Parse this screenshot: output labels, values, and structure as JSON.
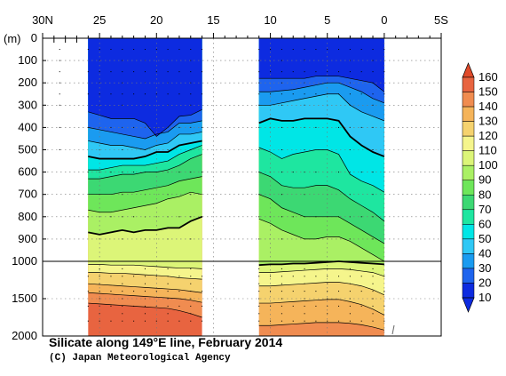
{
  "chart_data": {
    "type": "heatmap",
    "title": "Silicate along 149°E line, February 2014",
    "credit": "(C) Japan Meteorological Agency",
    "depth_unit": "(m)",
    "x_ticks": [
      "30N",
      "25",
      "20",
      "15",
      "10",
      "5",
      "0",
      "5S"
    ],
    "x_tick_values": [
      30,
      25,
      20,
      15,
      10,
      5,
      0,
      -5
    ],
    "xlim": [
      30,
      -5
    ],
    "y_ticks_upper": [
      "0",
      "100",
      "200",
      "300",
      "400",
      "500",
      "600",
      "700",
      "800",
      "900",
      "1000"
    ],
    "y_ticks_lower": [
      "1500",
      "2000"
    ],
    "ylim": [
      0,
      2000
    ],
    "axis_break_depth": 1000,
    "colorbar": {
      "levels": [
        10,
        20,
        30,
        40,
        50,
        60,
        70,
        80,
        90,
        100,
        110,
        120,
        130,
        140,
        150,
        160
      ],
      "labels": [
        "160",
        "150",
        "140",
        "130",
        "120",
        "110",
        "100",
        "90",
        "80",
        "70",
        "60",
        "50",
        "40",
        "30",
        "20",
        "10"
      ],
      "colors": [
        "#0d2be0",
        "#1e64ee",
        "#1a9bf0",
        "#2fc8f5",
        "#00e6e6",
        "#1ee6a0",
        "#3cd873",
        "#6ee65a",
        "#aaf064",
        "#dcf578",
        "#f5f58c",
        "#f5d26e",
        "#f5b45a",
        "#f08c50",
        "#e86440",
        "#e04a2a"
      ]
    },
    "sections": [
      {
        "lat_range": [
          26,
          16
        ],
        "layers": [
          {
            "depths": [
              330,
              345,
              360,
              360,
              360,
              380,
              440,
              400,
              350,
              345,
              320
            ],
            "value_above": 10
          },
          {
            "depths": [
              400,
              410,
              420,
              430,
              440,
              450,
              430,
              420,
              380,
              380,
              370
            ],
            "value_above": 20
          },
          {
            "depths": [
              460,
              470,
              480,
              480,
              490,
              500,
              480,
              470,
              430,
              430,
              420
            ],
            "value_above": 30
          },
          {
            "depths": [
              530,
              540,
              540,
              540,
              540,
              530,
              510,
              510,
              480,
              470,
              460
            ],
            "value_above": 40
          },
          {
            "depths": [
              590,
              590,
              580,
              570,
              570,
              570,
              560,
              550,
              520,
              500,
              480
            ],
            "value_above": 50
          },
          {
            "depths": [
              630,
              630,
              620,
              610,
              610,
              600,
              600,
              590,
              570,
              540,
              520
            ],
            "value_above": 60
          },
          {
            "depths": [
              700,
              700,
              700,
              690,
              690,
              680,
              670,
              660,
              640,
              630,
              620
            ],
            "value_above": 70
          },
          {
            "depths": [
              770,
              780,
              780,
              770,
              760,
              750,
              740,
              720,
              710,
              690,
              700
            ],
            "value_above": 80
          },
          {
            "depths": [
              870,
              880,
              870,
              860,
              870,
              860,
              860,
              850,
              850,
              820,
              800
            ],
            "value_above": 90
          },
          {
            "depths": [
              1040,
              1040,
              1050,
              1050,
              1050,
              1060,
              1070,
              1080,
              1090,
              1090,
              1100
            ],
            "value_above": 100
          },
          {
            "depths": [
              1150,
              1150,
              1160,
              1160,
              1170,
              1180,
              1190,
              1200,
              1220,
              1230,
              1240
            ],
            "value_above": 110
          },
          {
            "depths": [
              1300,
              1310,
              1320,
              1330,
              1340,
              1350,
              1360,
              1370,
              1380,
              1400,
              1420
            ],
            "value_above": 120
          },
          {
            "depths": [
              1420,
              1430,
              1440,
              1450,
              1460,
              1470,
              1480,
              1490,
              1500,
              1520,
              1550
            ],
            "value_above": 130
          },
          {
            "depths": [
              1560,
              1570,
              1580,
              1590,
              1600,
              1610,
              1620,
              1630,
              1660,
              1700,
              1750
            ],
            "value_above": 140
          }
        ],
        "value_bottom": 150
      },
      {
        "lat_range": [
          11,
          0
        ],
        "layers": [
          {
            "depths": [
              180,
              180,
              180,
              180,
              180,
              170,
              170,
              170,
              180,
              190,
              200,
              240
            ],
            "value_above": 10
          },
          {
            "depths": [
              240,
              240,
              235,
              230,
              220,
              210,
              200,
              200,
              220,
              240,
              270,
              290
            ],
            "value_above": 20
          },
          {
            "depths": [
              300,
              300,
              290,
              280,
              270,
              260,
              250,
              250,
              300,
              330,
              350,
              370
            ],
            "value_above": 30
          },
          {
            "depths": [
              380,
              360,
              370,
              370,
              360,
              360,
              360,
              370,
              440,
              480,
              510,
              530
            ],
            "value_above": 40
          },
          {
            "depths": [
              490,
              510,
              540,
              520,
              510,
              500,
              500,
              520,
              610,
              640,
              660,
              690
            ],
            "value_above": 50
          },
          {
            "depths": [
              600,
              620,
              660,
              670,
              670,
              660,
              660,
              680,
              720,
              750,
              780,
              820
            ],
            "value_above": 60
          },
          {
            "depths": [
              700,
              720,
              760,
              780,
              800,
              800,
              800,
              800,
              830,
              860,
              890,
              920
            ],
            "value_above": 70
          },
          {
            "depths": [
              810,
              830,
              860,
              880,
              900,
              900,
              890,
              890,
              910,
              940,
              970,
              1000
            ],
            "value_above": 80
          },
          {
            "depths": [
              1050,
              1040,
              1040,
              1030,
              1030,
              1020,
              1010,
              1000,
              1010,
              1020,
              1030,
              1040
            ],
            "value_above": 90
          },
          {
            "depths": [
              1150,
              1150,
              1140,
              1130,
              1120,
              1110,
              1100,
              1100,
              1110,
              1130,
              1150,
              1200
            ],
            "value_above": 100
          },
          {
            "depths": [
              1330,
              1330,
              1320,
              1310,
              1300,
              1290,
              1280,
              1280,
              1300,
              1330,
              1380,
              1450
            ],
            "value_above": 110
          },
          {
            "depths": [
              1560,
              1560,
              1550,
              1540,
              1530,
              1520,
              1510,
              1510,
              1540,
              1580,
              1640,
              1720
            ],
            "value_above": 120
          },
          {
            "depths": [
              1860,
              1860,
              1850,
              1840,
              1830,
              1820,
              1820,
              1820,
              1830,
              1850,
              1880,
              1920
            ],
            "value_above": 130
          }
        ],
        "value_bottom": 140
      }
    ],
    "station_latitudes": [
      28.5,
      26,
      25,
      24,
      23,
      22,
      21,
      20,
      19,
      18,
      17,
      16,
      11,
      10,
      9,
      8,
      7,
      6,
      5,
      4,
      3,
      2,
      1,
      0
    ],
    "station_depth_samples": [
      50,
      100,
      150,
      200,
      250,
      300,
      400,
      500,
      600,
      700,
      800,
      900,
      1000,
      1100,
      1200,
      1300,
      1400,
      1500,
      1600,
      1700,
      1800
    ]
  }
}
